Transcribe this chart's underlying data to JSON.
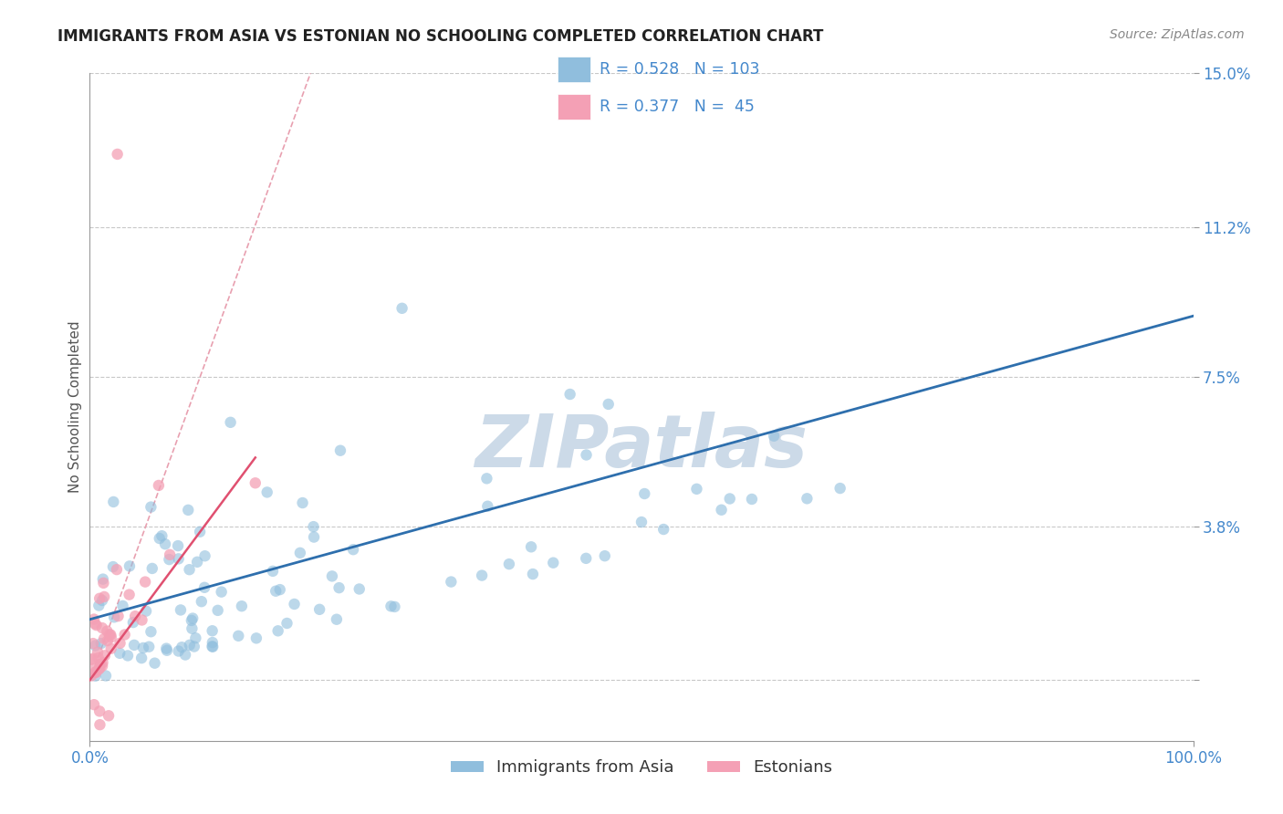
{
  "title": "IMMIGRANTS FROM ASIA VS ESTONIAN NO SCHOOLING COMPLETED CORRELATION CHART",
  "source_text": "Source: ZipAtlas.com",
  "ylabel": "No Schooling Completed",
  "legend_label1": "Immigrants from Asia",
  "legend_label2": "Estonians",
  "R1": 0.528,
  "N1": 103,
  "R2": 0.377,
  "N2": 45,
  "xlim": [
    0.0,
    100.0
  ],
  "ylim": [
    -1.5,
    15.0
  ],
  "yticks": [
    0.0,
    3.8,
    7.5,
    11.2,
    15.0
  ],
  "ytick_labels": [
    "",
    "3.8%",
    "7.5%",
    "11.2%",
    "15.0%"
  ],
  "xtick_labels": [
    "0.0%",
    "100.0%"
  ],
  "color_blue": "#90bedd",
  "color_pink": "#f4a0b5",
  "line_color_blue": "#2e6fad",
  "line_color_pink": "#e05070",
  "ref_line_color": "#e8a0b0",
  "grid_color": "#c8c8c8",
  "watermark_color": "#ccdae8",
  "title_color": "#222222",
  "tick_label_color": "#4488cc",
  "background_color": "#ffffff",
  "blue_line_x0": 0,
  "blue_line_x1": 100,
  "blue_line_y0": 1.5,
  "blue_line_y1": 9.0,
  "pink_line_x0": 0,
  "pink_line_x1": 15,
  "pink_line_y0": 0,
  "pink_line_y1": 5.5,
  "ref_line_x0": 0,
  "ref_line_x1": 20,
  "ref_line_y0": 0,
  "ref_line_y1": 15,
  "title_fontsize": 12,
  "axis_label_fontsize": 11,
  "tick_label_fontsize": 12,
  "legend_fontsize": 13,
  "watermark_fontsize": 58
}
